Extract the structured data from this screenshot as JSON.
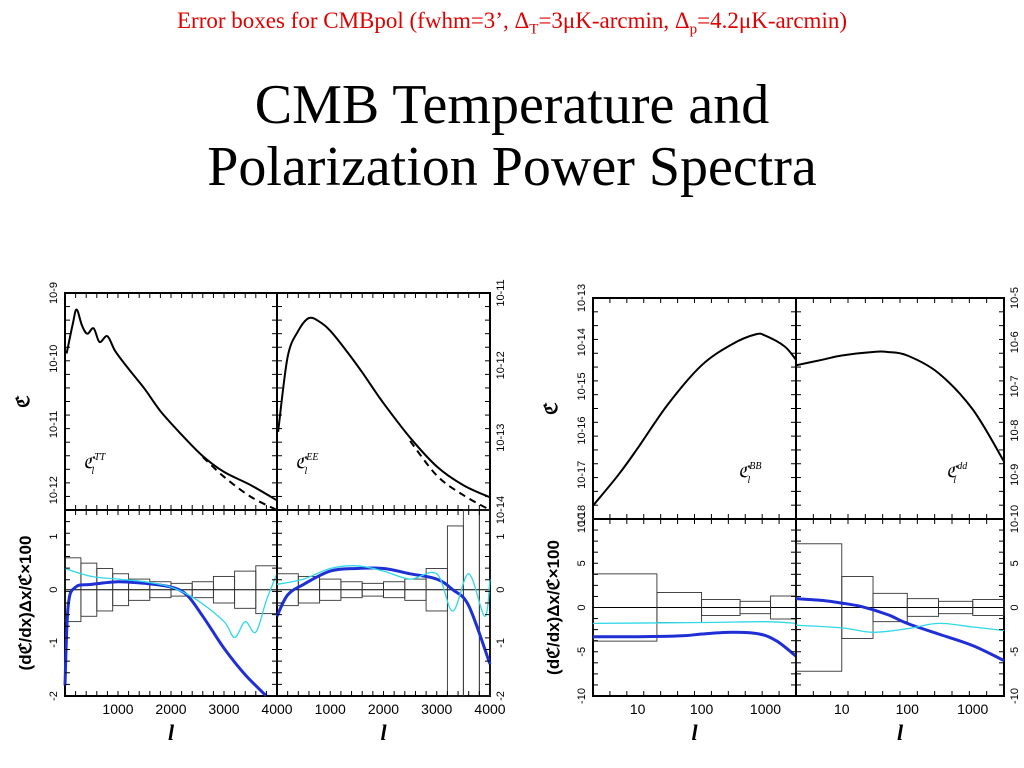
{
  "header": {
    "subtitle_prefix": "Error boxes for CMBpol (fwhm=3’, Δ",
    "subtitle_sub_T": "T",
    "subtitle_mid": "=3μK-arcmin, Δ",
    "subtitle_sub_p": "p",
    "subtitle_suffix": "=4.2μK-arcmin)",
    "title_line1": "CMB Temperature and",
    "title_line2": "Polarization Power Spectra",
    "subtitle_color": "#e00000"
  },
  "colors": {
    "fisher": "#1f2fd6",
    "fisher_alt": "#30d8e8",
    "spectrum": "#000000",
    "box": "#000000"
  },
  "chart_data": [
    {
      "type": "line",
      "panel": "TT spectrum",
      "label": "C_l^TT",
      "ylabel": "C_l",
      "xscale": "linear",
      "yscale": "log",
      "xlim": [
        0,
        4000
      ],
      "ylim": [
        5e-13,
        1e-09
      ],
      "yticks": [
        "10^-9",
        "10^-10",
        "10^-11",
        "10^-12"
      ],
      "series": [
        {
          "style": "solid",
          "points": [
            [
              30,
              1.2e-10
            ],
            [
              150,
              3.5e-10
            ],
            [
              220,
              5.6e-10
            ],
            [
              320,
              3.2e-10
            ],
            [
              420,
              2.4e-10
            ],
            [
              540,
              2.9e-10
            ],
            [
              650,
              1.8e-10
            ],
            [
              800,
              2.2e-10
            ],
            [
              950,
              1.3e-10
            ],
            [
              1200,
              7e-11
            ],
            [
              1500,
              3.5e-11
            ],
            [
              1800,
              1.6e-11
            ],
            [
              2200,
              7e-12
            ],
            [
              2600,
              3.3e-12
            ],
            [
              3000,
              1.9e-12
            ],
            [
              3500,
              1.2e-12
            ],
            [
              4000,
              7e-13
            ]
          ]
        },
        {
          "style": "dashed",
          "points": [
            [
              2600,
              3.2e-12
            ],
            [
              3000,
              1.6e-12
            ],
            [
              3500,
              8e-13
            ],
            [
              4000,
              5e-13
            ]
          ]
        }
      ]
    },
    {
      "type": "line",
      "panel": "EE spectrum",
      "label": "C_l^EE",
      "yscale": "log",
      "xscale": "linear",
      "xlim": [
        0,
        4000
      ],
      "ylim": [
        1e-14,
        1e-11
      ],
      "yticks_right": [
        "10^-11",
        "10^-12",
        "10^-13",
        "10^-14"
      ],
      "series": [
        {
          "style": "solid",
          "points": [
            [
              20,
              1.2e-13
            ],
            [
              200,
              1.3e-12
            ],
            [
              400,
              3e-12
            ],
            [
              600,
              4.5e-12
            ],
            [
              800,
              4e-12
            ],
            [
              1000,
              3e-12
            ],
            [
              1300,
              1.6e-12
            ],
            [
              1600,
              8e-13
            ],
            [
              2000,
              3e-13
            ],
            [
              2500,
              1e-13
            ],
            [
              3000,
              4e-14
            ],
            [
              3500,
              2.2e-14
            ],
            [
              4000,
              1.5e-14
            ]
          ]
        },
        {
          "style": "dashed",
          "points": [
            [
              2500,
              9e-14
            ],
            [
              3000,
              3e-14
            ],
            [
              3500,
              1.6e-14
            ],
            [
              4000,
              1e-14
            ]
          ]
        }
      ]
    },
    {
      "type": "line",
      "panel": "TT Fisher",
      "ylabel": "(dC_l/dx)Δx/C_l×100",
      "xlabel": "l",
      "xlim": [
        0,
        4000
      ],
      "ylim": [
        -2,
        1.5
      ],
      "xticks": [
        "1000",
        "2000",
        "3000",
        "4000"
      ],
      "yticks": [
        "1",
        "0",
        "-1",
        "-2"
      ],
      "series": [
        {
          "name": "",
          "color": "#1f2fd6",
          "points": [
            [
              0,
              -1.8
            ],
            [
              60,
              -0.3
            ],
            [
              200,
              0.05
            ],
            [
              500,
              0.1
            ],
            [
              1000,
              0.15
            ],
            [
              1500,
              0.12
            ],
            [
              2000,
              0.05
            ],
            [
              2300,
              -0.1
            ],
            [
              2600,
              -0.5
            ],
            [
              3000,
              -1.1
            ],
            [
              3400,
              -1.6
            ],
            [
              3800,
              -2.0
            ]
          ]
        },
        {
          "name": "",
          "color": "#30d8e8",
          "points": [
            [
              0,
              0.4
            ],
            [
              500,
              0.25
            ],
            [
              1000,
              0.2
            ],
            [
              1500,
              0.15
            ],
            [
              2000,
              0.05
            ],
            [
              2500,
              -0.2
            ],
            [
              3000,
              -0.6
            ],
            [
              3200,
              -0.9
            ],
            [
              3400,
              -0.6
            ],
            [
              3600,
              -0.8
            ],
            [
              3800,
              -0.2
            ],
            [
              4000,
              0.3
            ]
          ]
        }
      ],
      "error_boxes": [
        [
          0,
          300,
          -0.6,
          0.6
        ],
        [
          300,
          600,
          -0.5,
          0.5
        ],
        [
          600,
          900,
          -0.4,
          0.4
        ],
        [
          900,
          1200,
          -0.3,
          0.3
        ],
        [
          1200,
          1600,
          -0.2,
          0.2
        ],
        [
          1600,
          2000,
          -0.15,
          0.15
        ],
        [
          2000,
          2400,
          -0.12,
          0.12
        ],
        [
          2400,
          2800,
          -0.15,
          0.15
        ],
        [
          2800,
          3200,
          -0.25,
          0.25
        ],
        [
          3200,
          3600,
          -0.35,
          0.35
        ],
        [
          3600,
          4000,
          -0.45,
          0.45
        ]
      ]
    },
    {
      "type": "line",
      "panel": "EE Fisher",
      "xlabel": "l",
      "xlim": [
        0,
        4000
      ],
      "ylim": [
        -2,
        1.5
      ],
      "xticks": [
        "1000",
        "2000",
        "3000",
        "4000"
      ],
      "yticks_right": [
        "1",
        "0",
        "-1",
        "-2"
      ],
      "series": [
        {
          "name": "",
          "color": "#1f2fd6",
          "points": [
            [
              0,
              -0.5
            ],
            [
              200,
              -0.1
            ],
            [
              500,
              0.1
            ],
            [
              1000,
              0.35
            ],
            [
              1500,
              0.4
            ],
            [
              2000,
              0.4
            ],
            [
              2500,
              0.3
            ],
            [
              3000,
              0.2
            ],
            [
              3300,
              0.0
            ],
            [
              3600,
              -0.3
            ],
            [
              4000,
              -1.4
            ]
          ]
        },
        {
          "name": "",
          "color": "#30d8e8",
          "points": [
            [
              0,
              0.1
            ],
            [
              500,
              0.2
            ],
            [
              1000,
              0.4
            ],
            [
              1500,
              0.45
            ],
            [
              2000,
              0.35
            ],
            [
              2500,
              0.2
            ],
            [
              3000,
              0.3
            ],
            [
              3300,
              -0.4
            ],
            [
              3600,
              0.3
            ],
            [
              3900,
              -0.5
            ],
            [
              4000,
              0.2
            ]
          ]
        }
      ],
      "error_boxes": [
        [
          0,
          400,
          -0.3,
          0.3
        ],
        [
          400,
          800,
          -0.25,
          0.25
        ],
        [
          800,
          1200,
          -0.2,
          0.2
        ],
        [
          1200,
          1600,
          -0.15,
          0.15
        ],
        [
          1600,
          2000,
          -0.12,
          0.12
        ],
        [
          2000,
          2400,
          -0.15,
          0.15
        ],
        [
          2400,
          2800,
          -0.2,
          0.2
        ],
        [
          2800,
          3200,
          -0.4,
          0.4
        ],
        [
          3200,
          3500,
          -2.0,
          1.2
        ],
        [
          3500,
          3800,
          -2.0,
          1.5
        ],
        [
          3800,
          4000,
          -2.0,
          1.5
        ]
      ]
    },
    {
      "type": "line",
      "panel": "BB spectrum",
      "label": "C_l^BB",
      "ylabel": "C_l",
      "xscale": "log",
      "yscale": "log",
      "xlim": [
        2,
        3000
      ],
      "ylim": [
        1e-18,
        1e-13
      ],
      "yticks": [
        "10^-13",
        "10^-14",
        "10^-15",
        "10^-16",
        "10^-17",
        "10^-18"
      ],
      "series": [
        {
          "style": "solid",
          "points": [
            [
              2,
              2e-18
            ],
            [
              5,
              1e-17
            ],
            [
              10,
              4e-17
            ],
            [
              30,
              4e-16
            ],
            [
              100,
              3e-15
            ],
            [
              300,
              9e-15
            ],
            [
              700,
              1.5e-14
            ],
            [
              1000,
              1.4e-14
            ],
            [
              2000,
              8e-15
            ],
            [
              3000,
              4e-15
            ]
          ]
        }
      ]
    },
    {
      "type": "line",
      "panel": "dd spectrum",
      "label": "C_l^dd",
      "xscale": "log",
      "yscale": "log",
      "xlim": [
        2,
        3000
      ],
      "ylim": [
        1e-10,
        1e-05
      ],
      "yticks_right": [
        "10^-5",
        "10^-6",
        "10^-7",
        "10^-8",
        "10^-9",
        "10^-10"
      ],
      "series": [
        {
          "style": "solid",
          "points": [
            [
              2,
              3e-07
            ],
            [
              5,
              4e-07
            ],
            [
              10,
              5e-07
            ],
            [
              30,
              6e-07
            ],
            [
              50,
              6e-07
            ],
            [
              100,
              5e-07
            ],
            [
              300,
              2e-07
            ],
            [
              1000,
              3e-08
            ],
            [
              3000,
              2e-09
            ]
          ]
        }
      ]
    },
    {
      "type": "line",
      "panel": "BB Fisher",
      "ylabel": "(dC_l/dx)Δx/C_l×100",
      "xlabel": "l",
      "xscale": "log",
      "xlim": [
        2,
        3000
      ],
      "ylim": [
        -10,
        10
      ],
      "xticks": [
        "10",
        "100",
        "1000"
      ],
      "yticks": [
        "10",
        "5",
        "0",
        "-5",
        "-10"
      ],
      "series": [
        {
          "name": "",
          "color": "#1f2fd6",
          "points": [
            [
              2,
              -3.3
            ],
            [
              10,
              -3.3
            ],
            [
              50,
              -3.2
            ],
            [
              100,
              -3.0
            ],
            [
              300,
              -2.8
            ],
            [
              800,
              -3.0
            ],
            [
              1500,
              -3.8
            ],
            [
              3000,
              -5.5
            ]
          ]
        },
        {
          "name": "",
          "color": "#30d8e8",
          "points": [
            [
              2,
              -1.8
            ],
            [
              100,
              -1.7
            ],
            [
              1000,
              -1.6
            ],
            [
              3000,
              -1.8
            ]
          ]
        }
      ],
      "error_boxes": [
        [
          2,
          20,
          -3.8,
          3.8
        ],
        [
          20,
          100,
          -1.7,
          1.7
        ],
        [
          100,
          400,
          -0.9,
          0.9
        ],
        [
          400,
          1200,
          -0.7,
          0.7
        ],
        [
          1200,
          3000,
          -1.3,
          1.3
        ]
      ]
    },
    {
      "type": "line",
      "panel": "dd Fisher",
      "xlabel": "l",
      "xscale": "log",
      "xlim": [
        2,
        3000
      ],
      "ylim": [
        -10,
        10
      ],
      "xticks": [
        "10",
        "100",
        "1000"
      ],
      "yticks_right": [
        "5",
        "0",
        "-5",
        "-10"
      ],
      "series": [
        {
          "name": "",
          "color": "#1f2fd6",
          "points": [
            [
              2,
              1.0
            ],
            [
              5,
              0.8
            ],
            [
              10,
              0.5
            ],
            [
              20,
              0.1
            ],
            [
              50,
              -0.8
            ],
            [
              100,
              -1.8
            ],
            [
              300,
              -3.0
            ],
            [
              1000,
              -4.3
            ],
            [
              3000,
              -6.0
            ]
          ]
        },
        {
          "name": "",
          "color": "#30d8e8",
          "points": [
            [
              2,
              -2.0
            ],
            [
              10,
              -2.3
            ],
            [
              30,
              -2.8
            ],
            [
              100,
              -2.4
            ],
            [
              300,
              -1.8
            ],
            [
              1000,
              -2.2
            ],
            [
              3000,
              -2.6
            ]
          ]
        }
      ],
      "error_boxes": [
        [
          2,
          10,
          -7.2,
          7.2
        ],
        [
          10,
          30,
          -3.5,
          3.5
        ],
        [
          30,
          100,
          -1.6,
          1.6
        ],
        [
          100,
          300,
          -1.0,
          1.0
        ],
        [
          300,
          1000,
          -0.7,
          0.7
        ],
        [
          1000,
          3000,
          -0.9,
          0.9
        ]
      ]
    }
  ]
}
